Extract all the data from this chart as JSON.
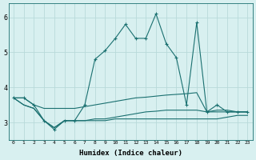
{
  "xlabel": "Humidex (Indice chaleur)",
  "x": [
    0,
    1,
    2,
    3,
    4,
    5,
    6,
    7,
    8,
    9,
    10,
    11,
    12,
    13,
    14,
    15,
    16,
    17,
    18,
    19,
    20,
    21,
    22,
    23
  ],
  "line1": [
    3.7,
    3.7,
    3.5,
    3.05,
    2.8,
    3.05,
    3.05,
    3.5,
    4.8,
    5.05,
    5.4,
    5.8,
    5.4,
    5.4,
    6.1,
    5.25,
    4.85,
    3.5,
    5.85,
    3.3,
    3.5,
    3.3,
    3.3,
    3.3
  ],
  "line2": [
    3.7,
    3.7,
    3.5,
    3.4,
    3.4,
    3.4,
    3.4,
    3.45,
    3.5,
    3.55,
    3.6,
    3.65,
    3.7,
    3.72,
    3.75,
    3.78,
    3.8,
    3.82,
    3.85,
    3.3,
    3.3,
    3.3,
    3.3,
    3.3
  ],
  "line3": [
    3.7,
    3.5,
    3.4,
    3.05,
    2.85,
    3.05,
    3.05,
    3.05,
    3.1,
    3.1,
    3.15,
    3.2,
    3.25,
    3.3,
    3.32,
    3.35,
    3.35,
    3.35,
    3.35,
    3.3,
    3.35,
    3.35,
    3.3,
    3.3
  ],
  "line4": [
    3.7,
    3.5,
    3.4,
    3.05,
    2.85,
    3.05,
    3.05,
    3.05,
    3.05,
    3.05,
    3.1,
    3.1,
    3.1,
    3.1,
    3.1,
    3.1,
    3.1,
    3.1,
    3.1,
    3.1,
    3.1,
    3.15,
    3.2,
    3.2
  ],
  "line_color": "#1a7070",
  "bg_color": "#d8f0f0",
  "grid_color": "#b8dada",
  "ylim": [
    2.5,
    6.4
  ],
  "xlim": [
    -0.5,
    23.5
  ],
  "yticks": [
    3,
    4,
    5,
    6
  ]
}
